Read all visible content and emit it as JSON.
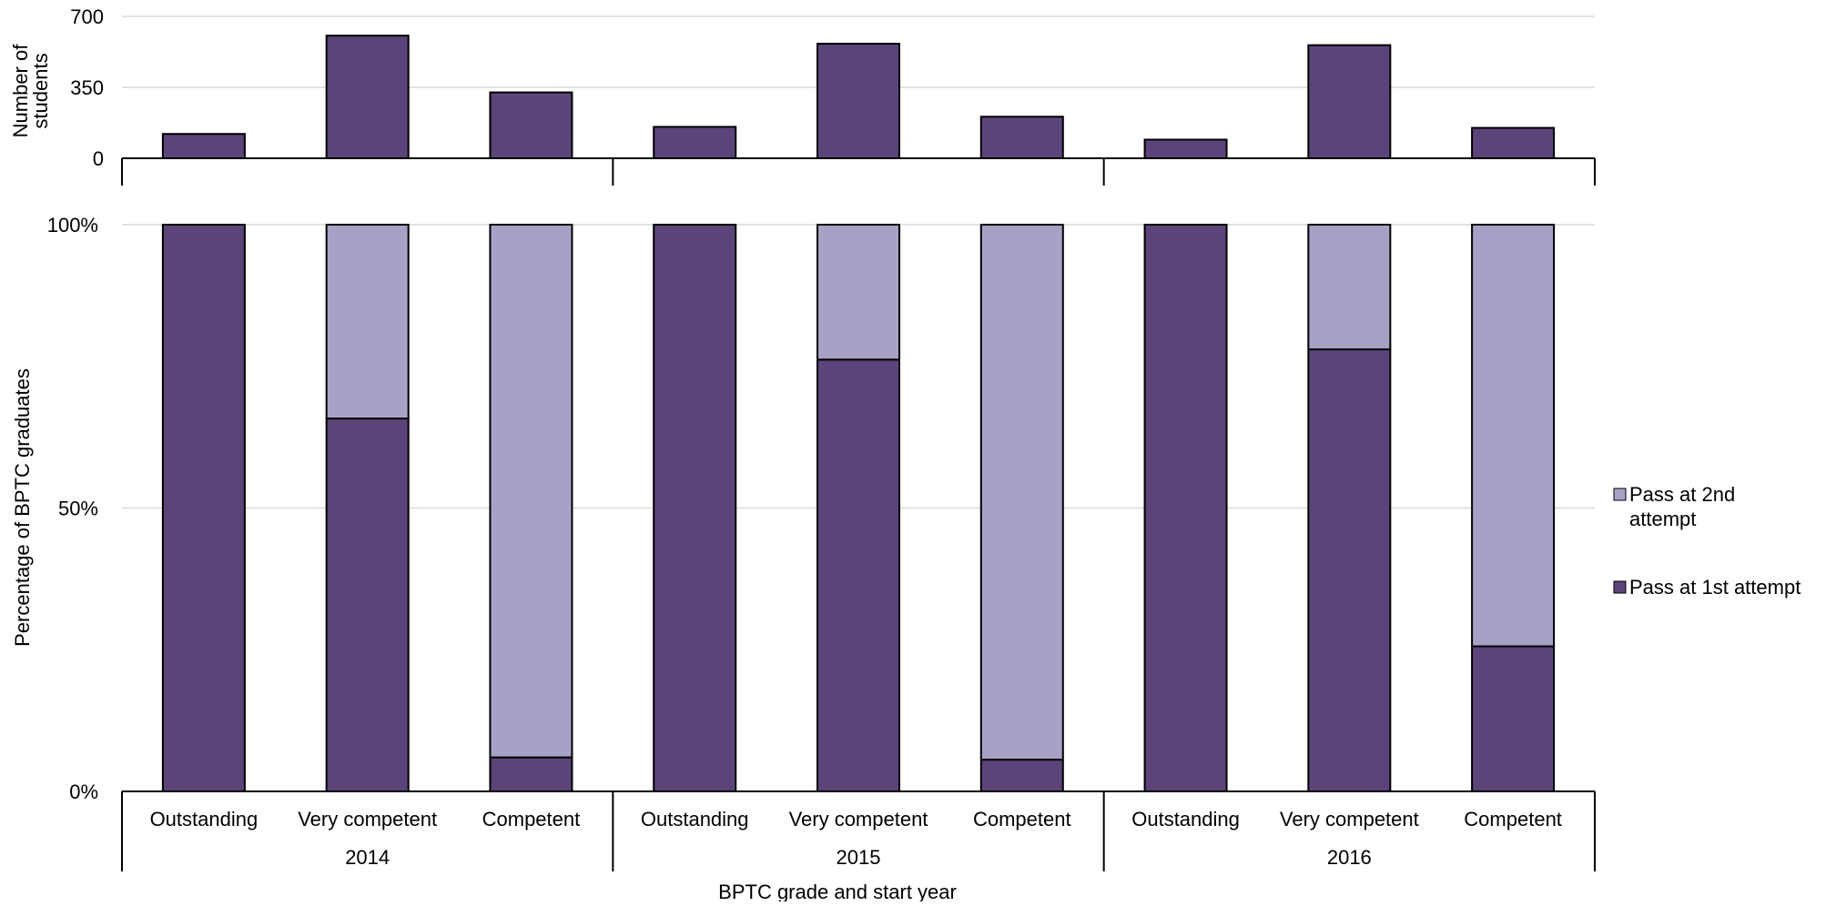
{
  "chart_data": [
    {
      "type": "bar",
      "ylabel": "Number of students",
      "ylim": [
        0,
        700
      ],
      "yticks": [
        "0",
        "350",
        "700"
      ],
      "grid": true,
      "categories": [
        "2014 Outstanding",
        "2014 Very competent",
        "2014 Competent",
        "2015 Outstanding",
        "2015 Very competent",
        "2015 Competent",
        "2016 Outstanding",
        "2016 Very competent",
        "2016 Competent"
      ],
      "values": [
        120,
        605,
        325,
        155,
        565,
        205,
        92,
        558,
        150
      ]
    },
    {
      "type": "bar",
      "stacked": true,
      "ylabel": "Percentage of BPTC graduates",
      "ylim": [
        0,
        100
      ],
      "yticks": [
        "0%",
        "50%",
        "100%"
      ],
      "grid": true,
      "xlabel": "BPTC grade and start year",
      "groups": [
        {
          "label": "2014",
          "categories": [
            "Outstanding",
            "Very competent",
            "Competent"
          ]
        },
        {
          "label": "2015",
          "categories": [
            "Outstanding",
            "Very competent",
            "Competent"
          ]
        },
        {
          "label": "2016",
          "categories": [
            "Outstanding",
            "Very competent",
            "Competent"
          ]
        }
      ],
      "series": [
        {
          "name": "Pass at 1st attempt",
          "color": "#5b447a",
          "values": [
            100,
            65.8,
            6,
            100,
            76.2,
            5.6,
            100,
            78,
            25.6
          ]
        },
        {
          "name": "Pass at 2nd attempt",
          "color": "#a6a2c6",
          "values": [
            0,
            34.2,
            94,
            0,
            23.8,
            94.4,
            0,
            22,
            74.4
          ]
        }
      ],
      "legend": "right"
    }
  ],
  "colors": {
    "dark": "#5b447a",
    "light": "#a6a2c6",
    "grid": "#d9d9d9"
  }
}
